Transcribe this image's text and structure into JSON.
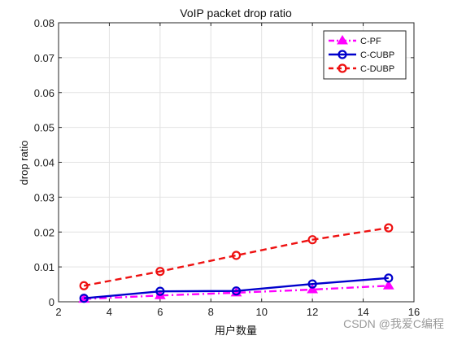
{
  "chart_data": {
    "type": "line",
    "title": "VoIP packet drop ratio",
    "xlabel": "用户数量",
    "ylabel": "drop ratio",
    "xlim": [
      2,
      16
    ],
    "ylim": [
      0,
      0.08
    ],
    "xticks": [
      "2",
      "4",
      "6",
      "8",
      "10",
      "12",
      "14",
      "16"
    ],
    "yticks": [
      "0",
      "0.01",
      "0.02",
      "0.03",
      "0.04",
      "0.05",
      "0.06",
      "0.07",
      "0.08"
    ],
    "grid": true,
    "legend_position": "top-right",
    "x": [
      3,
      6,
      9,
      12,
      15
    ],
    "series": [
      {
        "name": "C-PF",
        "values": [
          0.0008,
          0.0018,
          0.0026,
          0.0035,
          0.0046
        ],
        "color": "#ff00ff",
        "line": "dash-dot",
        "marker": "triangle"
      },
      {
        "name": "C-CUBP",
        "values": [
          0.001,
          0.003,
          0.0031,
          0.0051,
          0.0068
        ],
        "color": "#0000cc",
        "line": "solid",
        "marker": "circle"
      },
      {
        "name": "C-DUBP",
        "values": [
          0.0046,
          0.0087,
          0.0133,
          0.0178,
          0.0212
        ],
        "color": "#ee1111",
        "line": "dashed",
        "marker": "circle"
      }
    ]
  },
  "watermark": "CSDN @我爱C编程"
}
